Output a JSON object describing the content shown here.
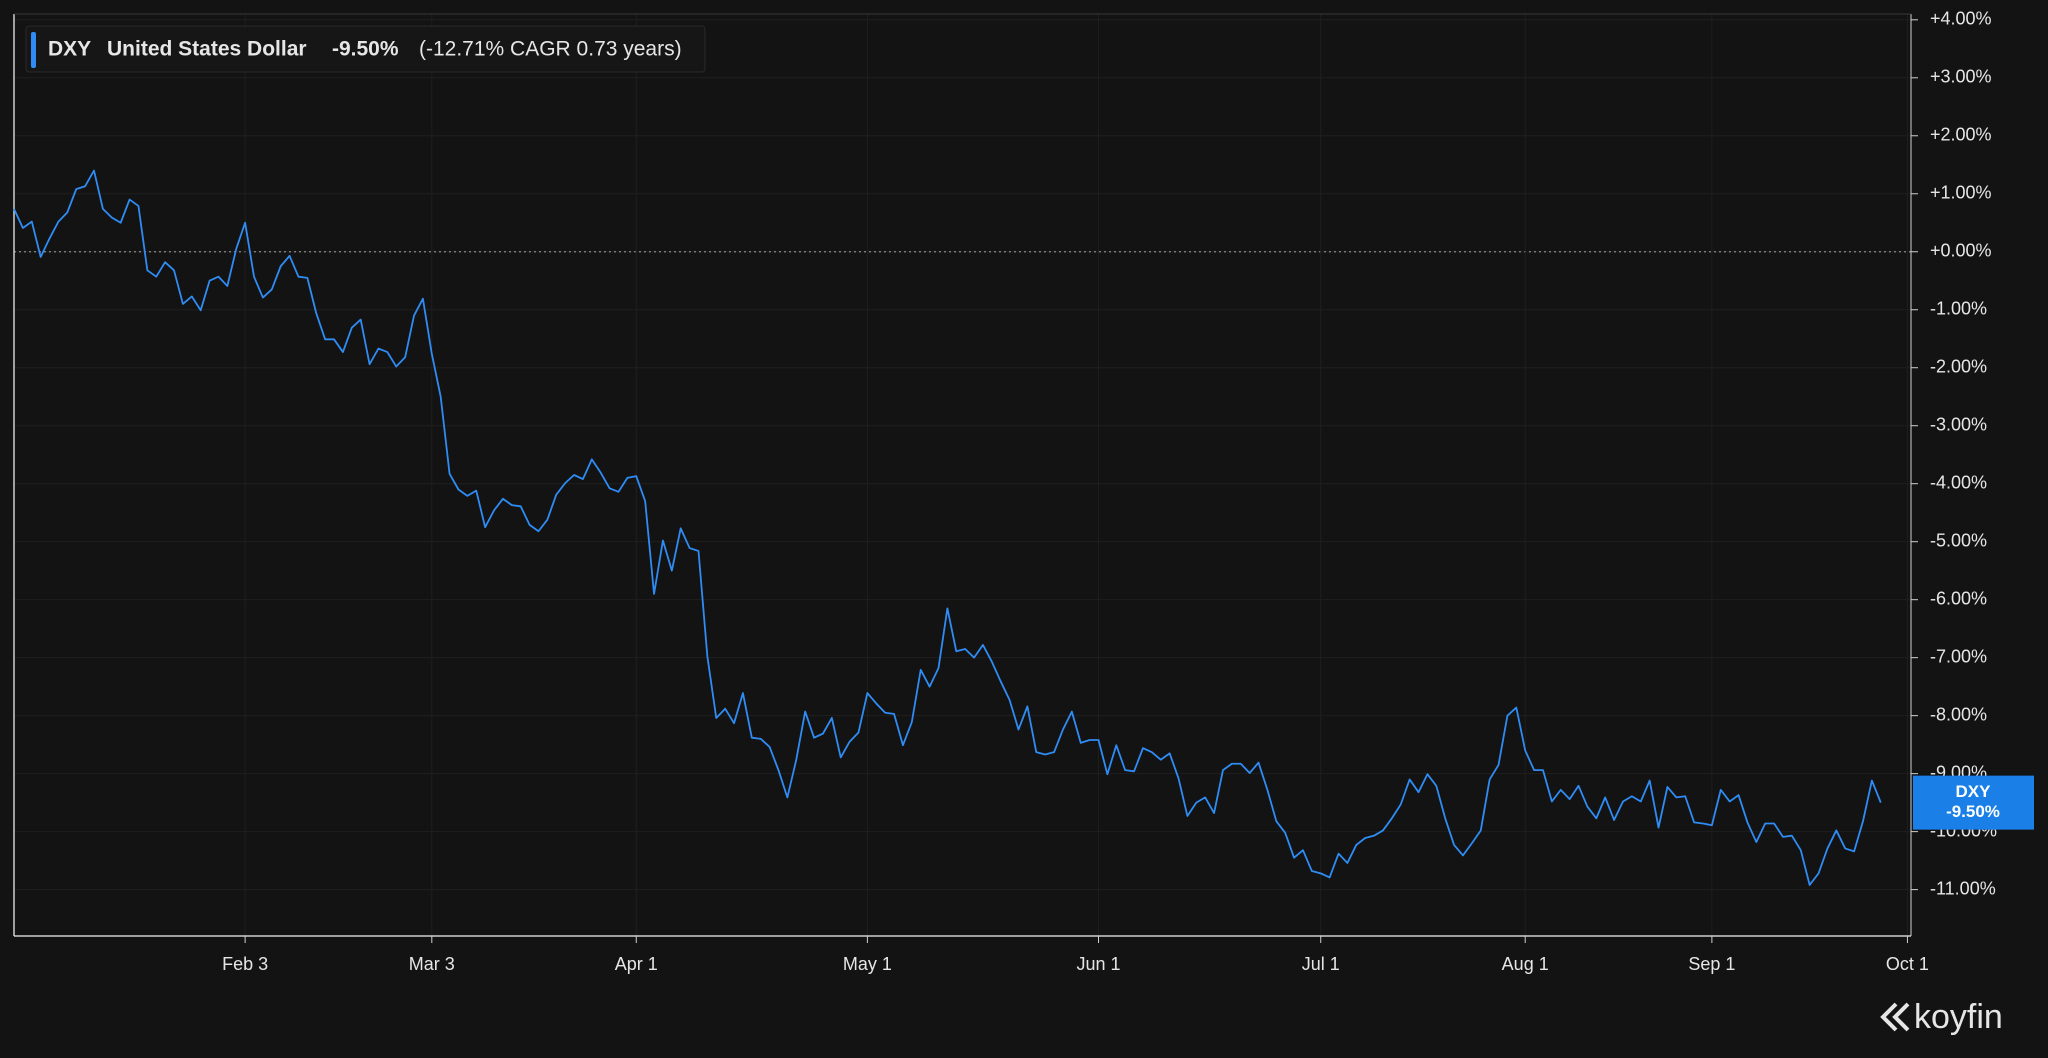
{
  "chart_data": {
    "type": "line",
    "categories": [
      null,
      null,
      null,
      null,
      null,
      null,
      null,
      null,
      null,
      null,
      null,
      null,
      null,
      null,
      null,
      null,
      null,
      null,
      null,
      null,
      null,
      null,
      null,
      null,
      null,
      null,
      "Feb 3",
      null,
      null,
      null,
      null,
      null,
      null,
      null,
      null,
      null,
      null,
      null,
      null,
      null,
      null,
      null,
      null,
      null,
      null,
      null,
      null,
      "Mar 3",
      null,
      null,
      null,
      null,
      null,
      null,
      null,
      null,
      null,
      null,
      null,
      null,
      null,
      null,
      null,
      null,
      null,
      null,
      null,
      null,
      null,
      null,
      "Apr 1",
      null,
      null,
      null,
      null,
      null,
      null,
      null,
      null,
      null,
      null,
      null,
      null,
      null,
      null,
      null,
      null,
      null,
      null,
      null,
      null,
      null,
      null,
      null,
      null,
      null,
      "May 1",
      null,
      null,
      null,
      null,
      null,
      null,
      null,
      null,
      null,
      null,
      null,
      null,
      null,
      null,
      null,
      null,
      null,
      null,
      null,
      null,
      null,
      null,
      null,
      null,
      null,
      "Jun 1",
      null,
      null,
      null,
      null,
      null,
      null,
      null,
      null,
      null,
      null,
      null,
      null,
      null,
      null,
      null,
      null,
      null,
      null,
      null,
      null,
      null,
      null,
      null,
      null,
      "Jul 1",
      null,
      null,
      null,
      null,
      null,
      null,
      null,
      null,
      null,
      null,
      null,
      null,
      null,
      null,
      null,
      null,
      null,
      null,
      null,
      null,
      null,
      null,
      "Aug 1",
      null,
      null,
      null,
      null,
      null,
      null,
      null,
      null,
      null,
      null,
      null,
      null,
      null,
      null,
      null,
      null,
      null,
      null,
      null,
      null,
      "Sep 1",
      null,
      null,
      null,
      null,
      null,
      null,
      null,
      null,
      null,
      null,
      null,
      null,
      null,
      null,
      null,
      null,
      null,
      null,
      null,
      null,
      null,
      "Oct 1"
    ],
    "series": [
      {
        "name": "DXY",
        "description": "United States Dollar",
        "color": "#2f8cf4",
        "values": [
          0.74,
          0.41,
          0.52,
          -0.09,
          0.23,
          0.52,
          0.68,
          1.08,
          1.13,
          1.4,
          0.74,
          0.59,
          0.5,
          0.9,
          0.79,
          -0.32,
          -0.43,
          -0.18,
          -0.32,
          -0.9,
          -0.77,
          -1.01,
          -0.5,
          -0.43,
          -0.59,
          0.05,
          0.5,
          -0.43,
          -0.79,
          -0.65,
          -0.25,
          -0.07,
          -0.43,
          -0.45,
          -1.06,
          -1.51,
          -1.51,
          -1.73,
          -1.31,
          -1.17,
          -1.94,
          -1.67,
          -1.73,
          -1.98,
          -1.82,
          -1.1,
          -0.81,
          -1.76,
          -2.5,
          -3.83,
          -4.1,
          -4.21,
          -4.12,
          -4.75,
          -4.46,
          -4.26,
          -4.37,
          -4.39,
          -4.71,
          -4.82,
          -4.62,
          -4.19,
          -3.99,
          -3.85,
          -3.92,
          -3.58,
          -3.81,
          -4.08,
          -4.14,
          -3.9,
          -3.87,
          -4.3,
          -5.9,
          -4.98,
          -5.5,
          -4.77,
          -5.11,
          -5.16,
          -6.98,
          -8.04,
          -7.88,
          -8.13,
          -7.61,
          -8.38,
          -8.4,
          -8.54,
          -8.94,
          -9.41,
          -8.76,
          -7.93,
          -8.38,
          -8.31,
          -8.04,
          -8.72,
          -8.45,
          -8.29,
          -7.61,
          -7.79,
          -7.95,
          -7.97,
          -8.51,
          -8.11,
          -7.21,
          -7.5,
          -7.18,
          -6.15,
          -6.89,
          -6.85,
          -7.0,
          -6.78,
          -7.07,
          -7.41,
          -7.73,
          -8.24,
          -7.84,
          -8.63,
          -8.67,
          -8.63,
          -8.24,
          -7.93,
          -8.47,
          -8.42,
          -8.42,
          -9.01,
          -8.51,
          -8.94,
          -8.96,
          -8.56,
          -8.63,
          -8.76,
          -8.65,
          -9.08,
          -9.73,
          -9.5,
          -9.41,
          -9.68,
          -8.94,
          -8.83,
          -8.83,
          -8.99,
          -8.81,
          -9.28,
          -9.82,
          -10.02,
          -10.45,
          -10.32,
          -10.68,
          -10.72,
          -10.79,
          -10.38,
          -10.54,
          -10.23,
          -10.11,
          -10.07,
          -9.98,
          -9.77,
          -9.53,
          -9.1,
          -9.32,
          -9.01,
          -9.21,
          -9.77,
          -10.23,
          -10.41,
          -10.2,
          -9.98,
          -9.1,
          -8.85,
          -8.0,
          -7.86,
          -8.6,
          -8.94,
          -8.94,
          -9.48,
          -9.28,
          -9.44,
          -9.21,
          -9.57,
          -9.77,
          -9.41,
          -9.8,
          -9.48,
          -9.39,
          -9.48,
          -9.12,
          -9.93,
          -9.23,
          -9.41,
          -9.39,
          -9.84,
          -9.86,
          -9.89,
          -9.28,
          -9.48,
          -9.37,
          -9.84,
          -10.18,
          -9.86,
          -9.86,
          -10.09,
          -10.07,
          -10.32,
          -10.92,
          -10.72,
          -10.29,
          -9.98,
          -10.29,
          -10.34,
          -9.82,
          -9.12,
          -9.5,
          null,
          null,
          null
        ]
      }
    ],
    "change": {
      "value": -9.5,
      "label": "-9.50%"
    },
    "legend_summary": "(-12.71% CAGR 0.73 years)",
    "ylim": [
      -11.8,
      4.1
    ],
    "yticks": [
      {
        "value": 4,
        "label": "+4.00%"
      },
      {
        "value": 3,
        "label": "+3.00%"
      },
      {
        "value": 2,
        "label": "+2.00%"
      },
      {
        "value": 1,
        "label": "+1.00%"
      },
      {
        "value": 0,
        "label": "+0.00%"
      },
      {
        "value": -1,
        "label": "-1.00%"
      },
      {
        "value": -2,
        "label": "-2.00%"
      },
      {
        "value": -3,
        "label": "-3.00%"
      },
      {
        "value": -4,
        "label": "-4.00%"
      },
      {
        "value": -5,
        "label": "-5.00%"
      },
      {
        "value": -6,
        "label": "-6.00%"
      },
      {
        "value": -7,
        "label": "-7.00%"
      },
      {
        "value": -8,
        "label": "-8.00%"
      },
      {
        "value": -9,
        "label": "-9.00%"
      },
      {
        "value": -10,
        "label": "-10.00%"
      },
      {
        "value": -11,
        "label": "-11.00%"
      }
    ],
    "grid": true,
    "zero_line": true,
    "watermark": "koyfin"
  }
}
